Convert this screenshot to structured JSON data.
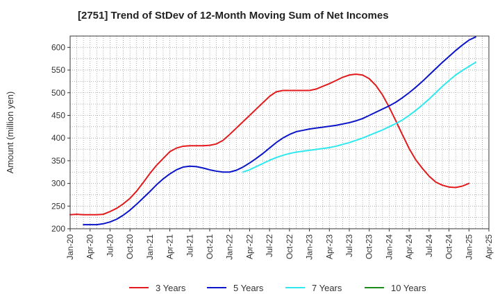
{
  "chart_data": {
    "type": "line",
    "title": "[2751]  Trend of StDev of 12-Month Moving Sum of Net Incomes",
    "ylabel": "Amount (million yen)",
    "xlabel": "",
    "ylim": [
      200,
      625
    ],
    "yticks": [
      200,
      250,
      300,
      350,
      400,
      450,
      500,
      550,
      600
    ],
    "xticks": [
      "Jan-20",
      "Apr-20",
      "Jul-20",
      "Oct-20",
      "Jan-21",
      "Apr-21",
      "Jul-21",
      "Oct-21",
      "Jan-22",
      "Apr-22",
      "Jul-22",
      "Oct-22",
      "Jan-23",
      "Apr-23",
      "Jul-23",
      "Oct-23",
      "Jan-24",
      "Apr-24",
      "Jul-24",
      "Oct-24",
      "Jan-25",
      "Apr-25"
    ],
    "grid": true,
    "legend_position": "bottom",
    "series": [
      {
        "name": "3 Years",
        "color": "#e31a1c",
        "points": [
          [
            "Jan-20",
            231
          ],
          [
            "Feb-20",
            232
          ],
          [
            "Mar-20",
            231
          ],
          [
            "Apr-20",
            231
          ],
          [
            "May-20",
            231
          ],
          [
            "Jun-20",
            232
          ],
          [
            "Jul-20",
            238
          ],
          [
            "Aug-20",
            245
          ],
          [
            "Sep-20",
            255
          ],
          [
            "Oct-20",
            267
          ],
          [
            "Nov-20",
            283
          ],
          [
            "Dec-20",
            302
          ],
          [
            "Jan-21",
            322
          ],
          [
            "Feb-21",
            340
          ],
          [
            "Mar-21",
            355
          ],
          [
            "Apr-21",
            370
          ],
          [
            "May-21",
            378
          ],
          [
            "Jun-21",
            382
          ],
          [
            "Jul-21",
            383
          ],
          [
            "Aug-21",
            383
          ],
          [
            "Sep-21",
            383
          ],
          [
            "Oct-21",
            384
          ],
          [
            "Nov-21",
            387
          ],
          [
            "Dec-21",
            395
          ],
          [
            "Jan-22",
            408
          ],
          [
            "Feb-22",
            422
          ],
          [
            "Mar-22",
            436
          ],
          [
            "Apr-22",
            450
          ],
          [
            "May-22",
            464
          ],
          [
            "Jun-22",
            478
          ],
          [
            "Jul-22",
            492
          ],
          [
            "Aug-22",
            502
          ],
          [
            "Sep-22",
            505
          ],
          [
            "Oct-22",
            505
          ],
          [
            "Nov-22",
            505
          ],
          [
            "Dec-22",
            505
          ],
          [
            "Jan-23",
            505
          ],
          [
            "Feb-23",
            508
          ],
          [
            "Mar-23",
            514
          ],
          [
            "Apr-23",
            520
          ],
          [
            "May-23",
            527
          ],
          [
            "Jun-23",
            534
          ],
          [
            "Jul-23",
            539
          ],
          [
            "Aug-23",
            541
          ],
          [
            "Sep-23",
            539
          ],
          [
            "Oct-23",
            531
          ],
          [
            "Nov-23",
            516
          ],
          [
            "Dec-23",
            495
          ],
          [
            "Jan-24",
            468
          ],
          [
            "Feb-24",
            438
          ],
          [
            "Mar-24",
            407
          ],
          [
            "Apr-24",
            377
          ],
          [
            "May-24",
            352
          ],
          [
            "Jun-24",
            333
          ],
          [
            "Jul-24",
            316
          ],
          [
            "Aug-24",
            303
          ],
          [
            "Sep-24",
            296
          ],
          [
            "Oct-24",
            292
          ],
          [
            "Nov-24",
            291
          ],
          [
            "Dec-24",
            294
          ],
          [
            "Jan-25",
            300
          ]
        ]
      },
      {
        "name": "5 Years",
        "color": "#0a14c8",
        "points": [
          [
            "Mar-20",
            209
          ],
          [
            "Apr-20",
            209
          ],
          [
            "May-20",
            209
          ],
          [
            "Jun-20",
            211
          ],
          [
            "Jul-20",
            215
          ],
          [
            "Aug-20",
            221
          ],
          [
            "Sep-20",
            230
          ],
          [
            "Oct-20",
            241
          ],
          [
            "Nov-20",
            254
          ],
          [
            "Dec-20",
            268
          ],
          [
            "Jan-21",
            282
          ],
          [
            "Feb-21",
            297
          ],
          [
            "Mar-21",
            310
          ],
          [
            "Apr-21",
            321
          ],
          [
            "May-21",
            330
          ],
          [
            "Jun-21",
            336
          ],
          [
            "Jul-21",
            338
          ],
          [
            "Aug-21",
            337
          ],
          [
            "Sep-21",
            334
          ],
          [
            "Oct-21",
            330
          ],
          [
            "Nov-21",
            327
          ],
          [
            "Dec-21",
            325
          ],
          [
            "Jan-22",
            325
          ],
          [
            "Feb-22",
            329
          ],
          [
            "Mar-22",
            336
          ],
          [
            "Apr-22",
            345
          ],
          [
            "May-22",
            355
          ],
          [
            "Jun-22",
            366
          ],
          [
            "Jul-22",
            378
          ],
          [
            "Aug-22",
            390
          ],
          [
            "Sep-22",
            400
          ],
          [
            "Oct-22",
            408
          ],
          [
            "Nov-22",
            414
          ],
          [
            "Dec-22",
            417
          ],
          [
            "Jan-23",
            420
          ],
          [
            "Feb-23",
            422
          ],
          [
            "Mar-23",
            424
          ],
          [
            "Apr-23",
            426
          ],
          [
            "May-23",
            428
          ],
          [
            "Jun-23",
            431
          ],
          [
            "Jul-23",
            434
          ],
          [
            "Aug-23",
            438
          ],
          [
            "Sep-23",
            443
          ],
          [
            "Oct-23",
            450
          ],
          [
            "Nov-23",
            457
          ],
          [
            "Dec-23",
            464
          ],
          [
            "Jan-24",
            471
          ],
          [
            "Feb-24",
            479
          ],
          [
            "Mar-24",
            489
          ],
          [
            "Apr-24",
            500
          ],
          [
            "May-24",
            512
          ],
          [
            "Jun-24",
            525
          ],
          [
            "Jul-24",
            539
          ],
          [
            "Aug-24",
            553
          ],
          [
            "Sep-24",
            567
          ],
          [
            "Oct-24",
            580
          ],
          [
            "Nov-24",
            593
          ],
          [
            "Dec-24",
            605
          ],
          [
            "Jan-25",
            616
          ],
          [
            "Feb-25",
            623
          ]
        ]
      },
      {
        "name": "7 Years",
        "color": "#2ee8f0",
        "points": [
          [
            "Mar-22",
            325
          ],
          [
            "Apr-22",
            330
          ],
          [
            "May-22",
            337
          ],
          [
            "Jun-22",
            344
          ],
          [
            "Jul-22",
            351
          ],
          [
            "Aug-22",
            357
          ],
          [
            "Sep-22",
            362
          ],
          [
            "Oct-22",
            366
          ],
          [
            "Nov-22",
            369
          ],
          [
            "Dec-22",
            371
          ],
          [
            "Jan-23",
            373
          ],
          [
            "Feb-23",
            375
          ],
          [
            "Mar-23",
            377
          ],
          [
            "Apr-23",
            379
          ],
          [
            "May-23",
            382
          ],
          [
            "Jun-23",
            386
          ],
          [
            "Jul-23",
            390
          ],
          [
            "Aug-23",
            395
          ],
          [
            "Sep-23",
            400
          ],
          [
            "Oct-23",
            406
          ],
          [
            "Nov-23",
            412
          ],
          [
            "Dec-23",
            418
          ],
          [
            "Jan-24",
            425
          ],
          [
            "Feb-24",
            432
          ],
          [
            "Mar-24",
            440
          ],
          [
            "Apr-24",
            450
          ],
          [
            "May-24",
            461
          ],
          [
            "Jun-24",
            473
          ],
          [
            "Jul-24",
            486
          ],
          [
            "Aug-24",
            500
          ],
          [
            "Sep-24",
            514
          ],
          [
            "Oct-24",
            527
          ],
          [
            "Nov-24",
            539
          ],
          [
            "Dec-24",
            549
          ],
          [
            "Jan-25",
            558
          ],
          [
            "Feb-25",
            567
          ]
        ]
      },
      {
        "name": "10 Years",
        "color": "#1a8a1a",
        "points": []
      }
    ]
  }
}
